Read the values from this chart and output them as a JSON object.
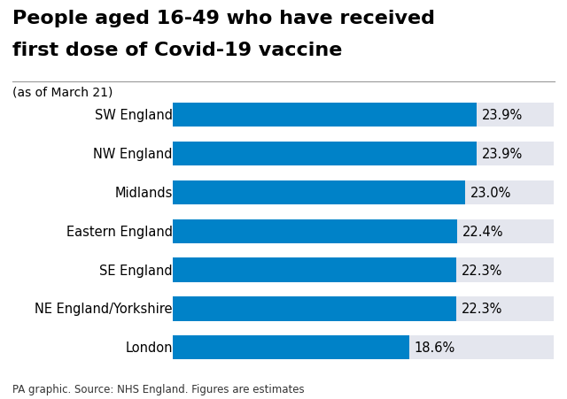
{
  "title_line1": "People aged 16-49 who have received",
  "title_line2": "first dose of Covid-19 vaccine",
  "subtitle": "(as of March 21)",
  "footer": "PA graphic. Source: NHS England. Figures are estimates",
  "categories": [
    "SW England",
    "NW England",
    "Midlands",
    "Eastern England",
    "SE England",
    "NE England/Yorkshire",
    "London"
  ],
  "values": [
    23.9,
    23.9,
    23.0,
    22.4,
    22.3,
    22.3,
    18.6
  ],
  "labels": [
    "23.9%",
    "23.9%",
    "23.0%",
    "22.4%",
    "22.3%",
    "22.3%",
    "18.6%"
  ],
  "bar_color": "#0082C8",
  "bg_color": "#E4E6EE",
  "full_bar_max": 30,
  "bar_height": 0.62,
  "title_fontsize": 16,
  "subtitle_fontsize": 10,
  "label_fontsize": 10.5,
  "category_fontsize": 10.5,
  "footer_fontsize": 8.5
}
